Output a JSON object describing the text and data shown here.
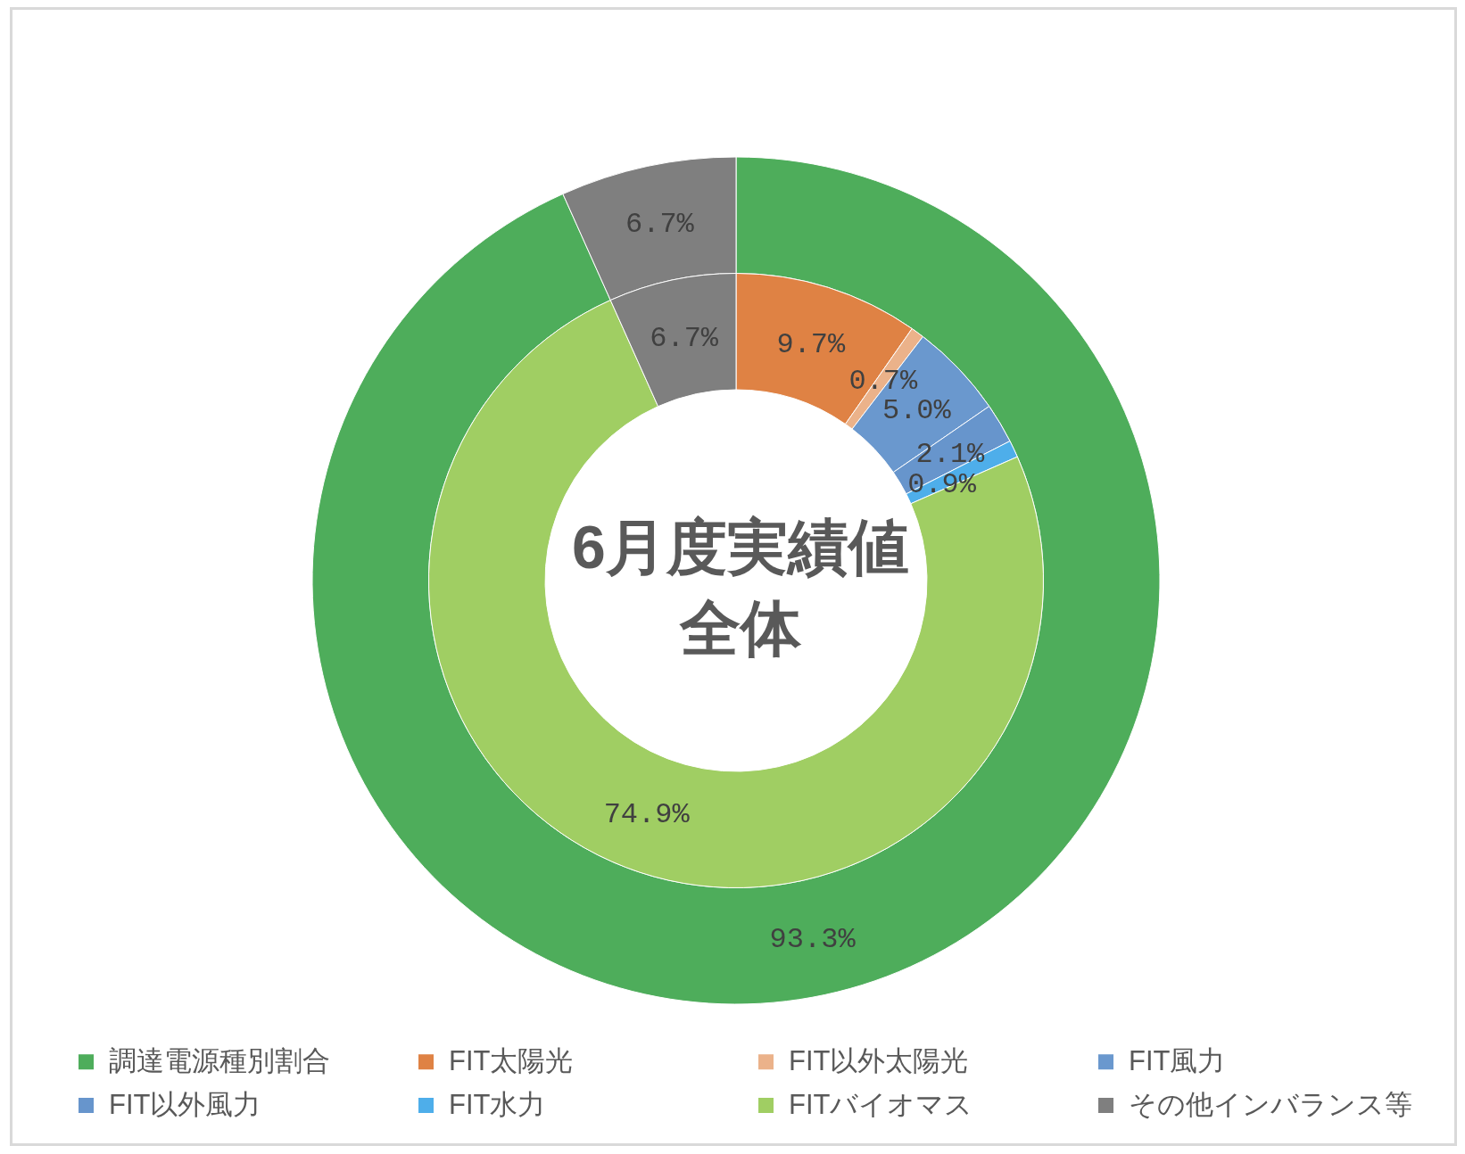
{
  "chart_data": {
    "type": "donut",
    "title": "6月度実績値全体",
    "categories": [
      "調達電源種別割合",
      "FIT太陽光",
      "FIT以外太陽光",
      "FIT風力",
      "FIT以外風力",
      "FIT水力",
      "FITバイオマス",
      "その他インバランス等"
    ],
    "colors": [
      "#4ead5b",
      "#df8244",
      "#ebb28a",
      "#6a98ce",
      "#6795cc",
      "#4eaeea",
      "#a0ce63",
      "#7f7f7f"
    ],
    "series": [
      {
        "values": [
          93.3,
          null,
          null,
          null,
          null,
          null,
          null,
          6.7
        ],
        "value_labels": [
          "93.3%",
          null,
          null,
          null,
          null,
          null,
          null,
          "6.7%"
        ]
      },
      {
        "values": [
          null,
          9.7,
          0.7,
          5.0,
          2.1,
          0.9,
          74.9,
          6.7
        ],
        "value_labels": [
          null,
          "9.7%",
          "0.7%",
          "5.0%",
          "2.1%",
          "0.9%",
          "74.9%",
          "6.7%"
        ]
      }
    ],
    "legend": "bottom"
  }
}
